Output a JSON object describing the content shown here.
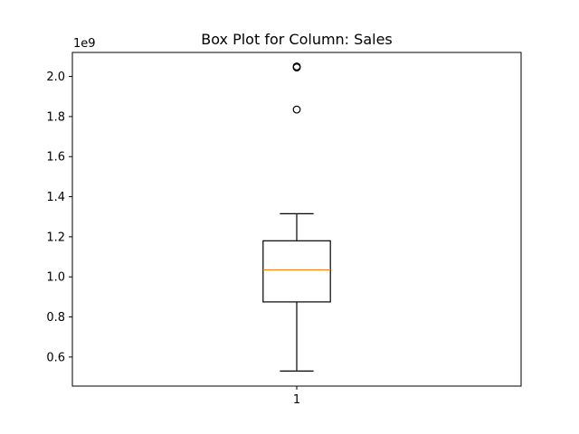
{
  "chart_data": {
    "type": "boxplot",
    "title": "Box Plot for Column: Sales",
    "xlabel": "",
    "ylabel": "",
    "y_offset_label": "1e9",
    "y_scale": 1000000000,
    "ylim": [
      0.455,
      2.12
    ],
    "yticks": [
      0.6,
      0.8,
      1.0,
      1.2,
      1.4,
      1.6,
      1.8,
      2.0
    ],
    "ytick_labels": [
      "0.6",
      "0.8",
      "1.0",
      "1.2",
      "1.4",
      "1.6",
      "1.8",
      "2.0"
    ],
    "xticks": [
      1
    ],
    "xtick_labels": [
      "1"
    ],
    "xlim": [
      0.5,
      1.5
    ],
    "grid": false,
    "colors": {
      "box": "#000000",
      "median": "#ff7f0e",
      "outlier": "#000000"
    },
    "boxes": [
      {
        "position": 1,
        "whisker_low": 0.53,
        "q1": 0.875,
        "median": 1.035,
        "q3": 1.18,
        "whisker_high": 1.315,
        "outliers": [
          1.835,
          2.045,
          2.05
        ]
      }
    ]
  }
}
